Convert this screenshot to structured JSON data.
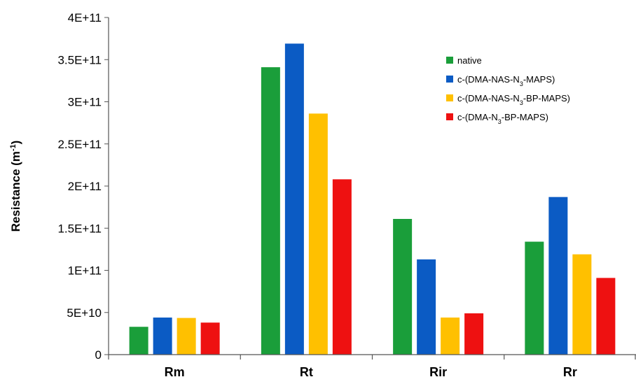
{
  "chart_data": {
    "type": "bar",
    "categories": [
      "Rm",
      "Rt",
      "Rir",
      "Rr"
    ],
    "series": [
      {
        "name": "native",
        "color": "#1a9e3a",
        "values": [
          33000000000.0,
          341000000000.0,
          161000000000.0,
          134000000000.0
        ]
      },
      {
        "name": "c-(DMA-NAS-N3-MAPS)",
        "color": "#0b5bc4",
        "values": [
          44000000000.0,
          369000000000.0,
          113000000000.0,
          187000000000.0
        ]
      },
      {
        "name": "c-(DMA-NAS-N3-BP-MAPS)",
        "color": "#ffc000",
        "values": [
          43500000000.0,
          286000000000.0,
          44000000000.0,
          119000000000.0
        ]
      },
      {
        "name": "c-(DMA-N3-BP-MAPS)",
        "color": "#ee1111",
        "values": [
          38000000000.0,
          208000000000.0,
          49000000000.0,
          91000000000.0
        ]
      }
    ],
    "ylabel": {
      "main": "Resistance (m",
      "sup": "-1",
      "end": ")"
    },
    "ylim": [
      0,
      400000000000
    ],
    "yticks": [
      0,
      50000000000,
      100000000000,
      150000000000,
      200000000000,
      250000000000,
      300000000000,
      350000000000,
      400000000000
    ],
    "ytick_labels": [
      "0",
      "5E+10",
      "1E+11",
      "1.5E+11",
      "2E+11",
      "2.5E+11",
      "3E+11",
      "3.5E+11",
      "4E+11"
    ],
    "legend_labels": [
      [
        {
          "t": "native"
        }
      ],
      [
        {
          "t": "c-(DMA-NAS-N"
        },
        {
          "t": "3",
          "sub": true
        },
        {
          "t": "-MAPS)"
        }
      ],
      [
        {
          "t": "c-(DMA-NAS-N"
        },
        {
          "t": "3",
          "sub": true
        },
        {
          "t": "-BP-MAPS)"
        }
      ],
      [
        {
          "t": "c-(DMA-N"
        },
        {
          "t": "3",
          "sub": true
        },
        {
          "t": "-BP-MAPS)"
        }
      ]
    ],
    "legend_position": "top-right",
    "grid": false
  }
}
